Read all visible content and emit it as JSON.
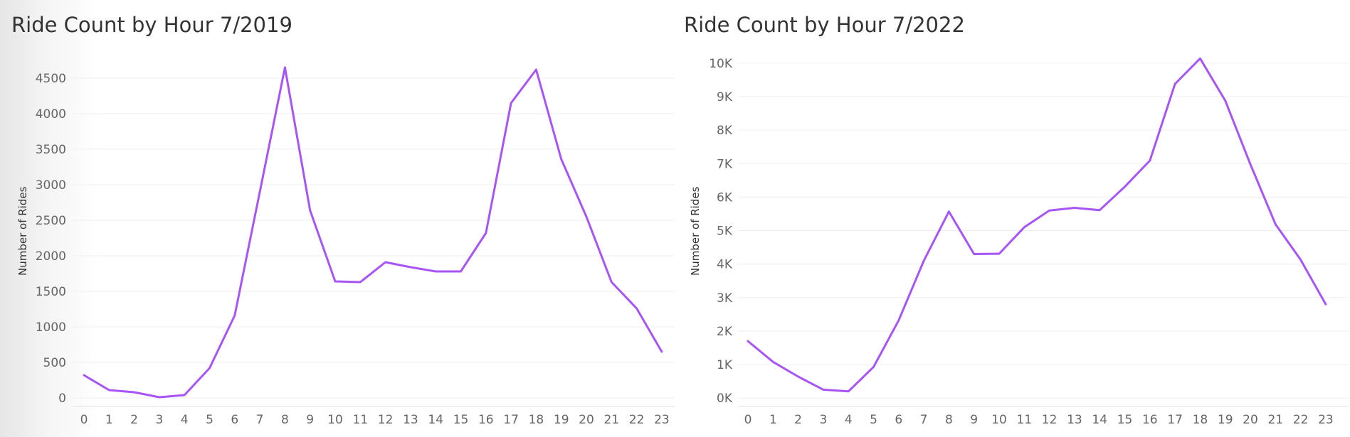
{
  "chart_data": [
    {
      "type": "line",
      "title": "Ride Count by Hour 7/2019",
      "xlabel": "",
      "ylabel": "Number of Rides",
      "x": [
        0,
        1,
        2,
        3,
        4,
        5,
        6,
        7,
        8,
        9,
        10,
        11,
        12,
        13,
        14,
        15,
        16,
        17,
        18,
        19,
        20,
        21,
        22,
        23
      ],
      "series": [
        {
          "color": "#a855f7",
          "values": [
            320,
            110,
            80,
            10,
            40,
            420,
            1160,
            2900,
            4650,
            2640,
            1640,
            1630,
            1910,
            1840,
            1780,
            1780,
            2320,
            4150,
            4620,
            3360,
            2550,
            1630,
            1260,
            650
          ]
        }
      ],
      "yticks": [
        0,
        500,
        1000,
        1500,
        2000,
        2500,
        3000,
        3500,
        4000,
        4500
      ],
      "ytick_labels": [
        "0",
        "500",
        "1000",
        "1500",
        "2000",
        "2500",
        "3000",
        "3500",
        "4000",
        "4500"
      ],
      "xtick_labels": [
        "0",
        "1",
        "2",
        "3",
        "4",
        "5",
        "6",
        "7",
        "8",
        "9",
        "10",
        "11",
        "12",
        "13",
        "14",
        "15",
        "16",
        "17",
        "18",
        "19",
        "20",
        "21",
        "22",
        "23"
      ],
      "ylim": [
        -120,
        4900
      ],
      "grid": true,
      "legend": "none"
    },
    {
      "type": "line",
      "title": "Ride Count by Hour 7/2022",
      "xlabel": "",
      "ylabel": "Number of Rides",
      "x": [
        0,
        1,
        2,
        3,
        4,
        5,
        6,
        7,
        8,
        9,
        10,
        11,
        12,
        13,
        14,
        15,
        16,
        17,
        18,
        19,
        20,
        21,
        22,
        23
      ],
      "series": [
        {
          "color": "#a855f7",
          "values": [
            1700,
            1080,
            640,
            250,
            200,
            930,
            2320,
            4100,
            5570,
            4300,
            4310,
            5100,
            5600,
            5680,
            5610,
            6310,
            7090,
            9380,
            10140,
            8880,
            6980,
            5190,
            4130,
            2800
          ]
        }
      ],
      "yticks": [
        0,
        1000,
        2000,
        3000,
        4000,
        5000,
        6000,
        7000,
        8000,
        9000,
        10000
      ],
      "ytick_labels": [
        "0K",
        "1K",
        "2K",
        "3K",
        "4K",
        "5K",
        "6K",
        "7K",
        "8K",
        "9K",
        "10K"
      ],
      "xtick_labels": [
        "0",
        "1",
        "2",
        "3",
        "4",
        "5",
        "6",
        "7",
        "8",
        "9",
        "10",
        "11",
        "12",
        "13",
        "14",
        "15",
        "16",
        "17",
        "18",
        "19",
        "20",
        "21",
        "22",
        "23"
      ],
      "ylim": [
        -250,
        10400
      ],
      "grid": true,
      "legend": "none"
    }
  ]
}
